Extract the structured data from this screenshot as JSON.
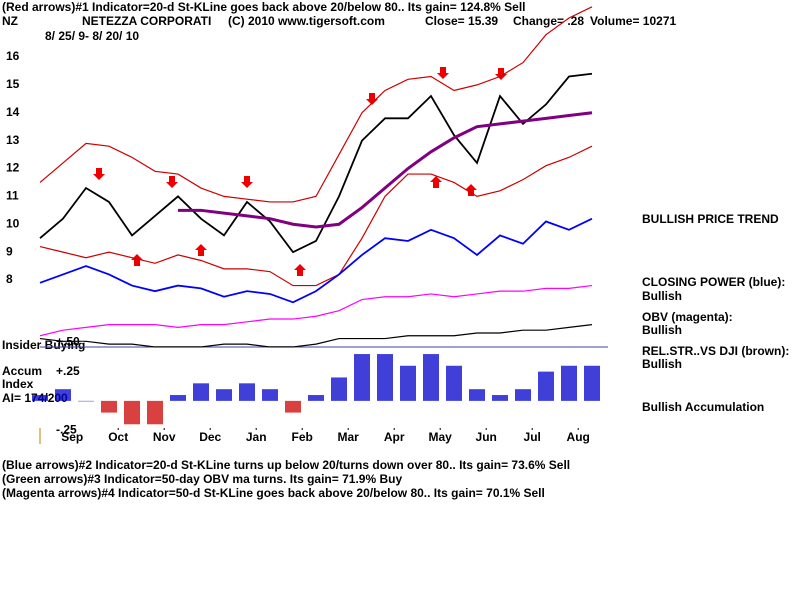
{
  "header": {
    "signal_line": "(Red arrows)#1 Indicator=20-d St-KLine goes back above 20/below 80.. Its gain= 124.8% Sell",
    "symbol": "NZ",
    "company": "NETEZZA CORPORATI",
    "copyright": "(C) 2010 www.tigersoft.com",
    "close": "Close= 15.39",
    "change": "Change= .28",
    "volume": "Volume= 10271",
    "date_range": "8/ 25/ 9- 8/ 20/ 10"
  },
  "chart_data": {
    "type": "line",
    "x": [
      0.8,
      1.3,
      1.8,
      2.3,
      2.8,
      3.3,
      3.8,
      4.3,
      4.8,
      5.3,
      5.8,
      6.3,
      6.8,
      7.3,
      7.8,
      8.3,
      8.8,
      9.3,
      9.8,
      10.3,
      10.8,
      11.3,
      11.8,
      12.3,
      12.8
    ],
    "xlim": [
      0.8,
      12.8
    ],
    "xticks": [
      {
        "value": 1.5,
        "label": "Sep"
      },
      {
        "value": 2.5,
        "label": "Oct"
      },
      {
        "value": 3.5,
        "label": "Nov"
      },
      {
        "value": 4.5,
        "label": "Dec"
      },
      {
        "value": 5.5,
        "label": "Jan"
      },
      {
        "value": 6.5,
        "label": "Feb"
      },
      {
        "value": 7.5,
        "label": "Mar"
      },
      {
        "value": 8.5,
        "label": "Apr"
      },
      {
        "value": 9.5,
        "label": "May"
      },
      {
        "value": 10.5,
        "label": "Jun"
      },
      {
        "value": 11.5,
        "label": "Jul"
      },
      {
        "value": 12.5,
        "label": "Aug"
      }
    ],
    "ylim": [
      5.5,
      18
    ],
    "yticks": [
      8,
      9,
      10,
      11,
      12,
      13,
      14,
      15,
      16
    ],
    "series": [
      {
        "color": "#000000",
        "values": [
          9.5,
          10.2,
          11.3,
          10.8,
          9.6,
          10.3,
          11.0,
          10.2,
          9.6,
          10.8,
          10.1,
          9.0,
          9.4,
          11.0,
          13.0,
          13.8,
          13.8,
          14.6,
          13.2,
          12.2,
          14.6,
          13.6,
          14.3,
          15.3,
          15.4
        ]
      },
      {
        "color": "#cc0000",
        "values": [
          11.5,
          12.2,
          12.9,
          12.8,
          12.4,
          11.9,
          11.8,
          11.3,
          11.0,
          10.9,
          10.8,
          10.8,
          11.0,
          12.5,
          14.0,
          14.8,
          15.2,
          15.3,
          14.8,
          15.0,
          15.3,
          15.8,
          16.8,
          17.4,
          17.8
        ]
      },
      {
        "color": "#cc0000",
        "values": [
          9.2,
          9.0,
          8.8,
          9.0,
          8.8,
          8.6,
          8.9,
          8.7,
          8.4,
          8.4,
          8.3,
          7.8,
          7.8,
          8.2,
          9.5,
          11.0,
          11.8,
          11.8,
          11.5,
          11.0,
          11.2,
          11.6,
          12.1,
          12.4,
          12.8
        ]
      },
      {
        "color": "#800080",
        "values": [
          null,
          null,
          null,
          null,
          null,
          null,
          10.5,
          10.5,
          10.4,
          10.3,
          10.2,
          10.0,
          9.9,
          10.0,
          10.6,
          11.3,
          12.0,
          12.6,
          13.1,
          13.5,
          13.6,
          13.7,
          13.8,
          13.9,
          14.0
        ]
      },
      {
        "color": "#0000ff",
        "values": [
          7.9,
          8.2,
          8.5,
          8.2,
          7.8,
          7.6,
          7.8,
          7.7,
          7.4,
          7.6,
          7.5,
          7.2,
          7.6,
          8.2,
          8.9,
          9.5,
          9.4,
          9.8,
          9.5,
          8.9,
          9.6,
          9.3,
          10.1,
          9.8,
          10.2
        ]
      },
      {
        "color": "#ff00ff",
        "values": [
          6.0,
          6.2,
          6.3,
          6.4,
          6.4,
          6.4,
          6.3,
          6.4,
          6.4,
          6.5,
          6.6,
          6.6,
          6.7,
          6.9,
          7.3,
          7.4,
          7.4,
          7.5,
          7.4,
          7.5,
          7.6,
          7.6,
          7.7,
          7.7,
          7.8
        ]
      },
      {
        "color": "#000000",
        "values": [
          5.9,
          5.8,
          5.8,
          5.7,
          5.7,
          5.6,
          5.6,
          5.6,
          5.7,
          5.7,
          5.6,
          5.6,
          5.7,
          5.9,
          5.9,
          5.9,
          6.0,
          6.0,
          6.0,
          6.1,
          6.1,
          6.2,
          6.2,
          6.3,
          6.4
        ]
      }
    ]
  },
  "accum": {
    "type": "bar",
    "ylim": [
      -0.3,
      0.52
    ],
    "yticks": [
      {
        "value": 0.5,
        "label": "+.50"
      },
      {
        "value": 0.25,
        "label": "+.25"
      },
      {
        "value": -0.25,
        "label": "-.25"
      }
    ],
    "values": [
      0.05,
      0.1,
      0.0,
      -0.1,
      -0.2,
      -0.2,
      0.05,
      0.15,
      0.1,
      0.15,
      0.1,
      -0.1,
      0.05,
      0.2,
      0.4,
      0.4,
      0.3,
      0.4,
      0.3,
      0.1,
      0.05,
      0.1,
      0.25,
      0.3,
      0.3
    ],
    "positive_color": "#0000cc",
    "negative_color": "#cc0000"
  },
  "left_labels": {
    "insider": "Insider Buying",
    "accum": "Accum",
    "index": "Index",
    "ai": "AI= 174/200"
  },
  "side_notes": {
    "trend": "BULLISH PRICE TREND",
    "cp_title": "CLOSING POWER (blue):",
    "cp_value": "Bullish",
    "obv_title": "OBV (magenta):",
    "obv_value": "Bullish",
    "rs_title": "REL.STR..VS DJI (brown):",
    "rs_value": "Bullish",
    "accumulation": "Bullish Accumulation"
  },
  "footer": [
    "(Blue arrows)#2 Indicator=20-d St-KLine turns up below 20/turns down over 80.. Its gain= 73.6% Sell",
    "(Green arrows)#3 Indicator=50-day OBV ma turns. Its gain= 71.9% Buy",
    "(Magenta arrows)#4 Indicator=50-d St-KLine goes back above 20/below 80.. Its gain= 70.1% Sell"
  ]
}
